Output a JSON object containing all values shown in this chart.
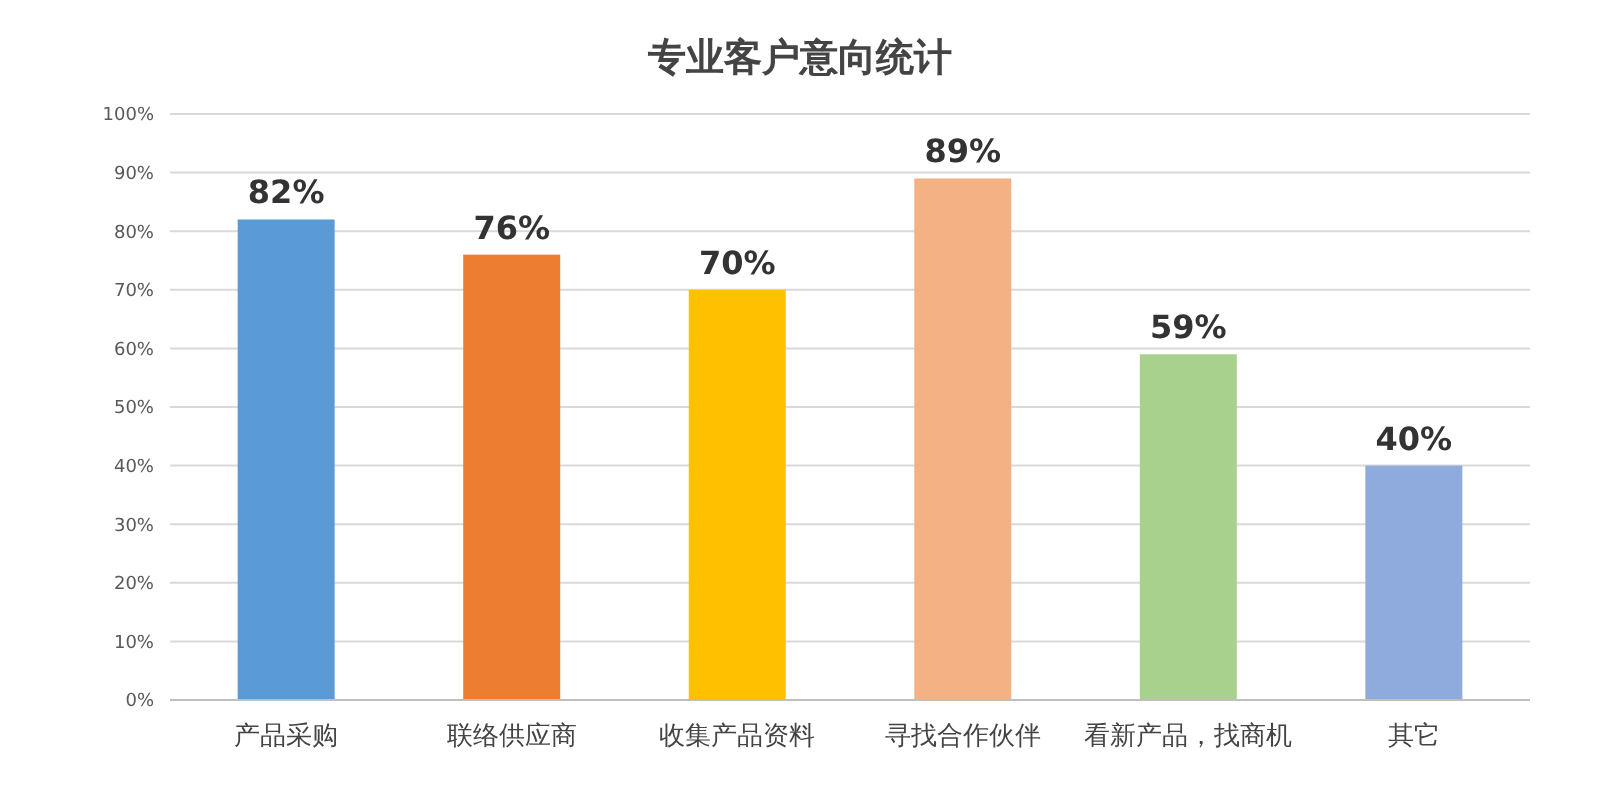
{
  "chart_data": {
    "type": "bar",
    "title": "专业客户意向统计",
    "categories": [
      "产品采购",
      "联络供应商",
      "收集产品资料",
      "寻找合作伙伴",
      "看新产品，找商机",
      "其它"
    ],
    "values": [
      82,
      76,
      70,
      89,
      59,
      40
    ],
    "colors": [
      "#5b9bd5",
      "#ed7d31",
      "#ffc000",
      "#f4b183",
      "#a9d18e",
      "#8faadc"
    ],
    "value_labels": [
      "82%",
      "76%",
      "70%",
      "89%",
      "59%",
      "40%"
    ],
    "ylim": [
      0,
      100
    ],
    "yticks": [
      {
        "value": 0,
        "label": "0%"
      },
      {
        "value": 10,
        "label": "10%"
      },
      {
        "value": 20,
        "label": "20%"
      },
      {
        "value": 30,
        "label": "30%"
      },
      {
        "value": 40,
        "label": "40%"
      },
      {
        "value": 50,
        "label": "50%"
      },
      {
        "value": 60,
        "label": "60%"
      },
      {
        "value": 70,
        "label": "70%"
      },
      {
        "value": 80,
        "label": "80%"
      },
      {
        "value": 90,
        "label": "90%"
      },
      {
        "value": 100,
        "label": "100%"
      }
    ],
    "grid": "y"
  }
}
